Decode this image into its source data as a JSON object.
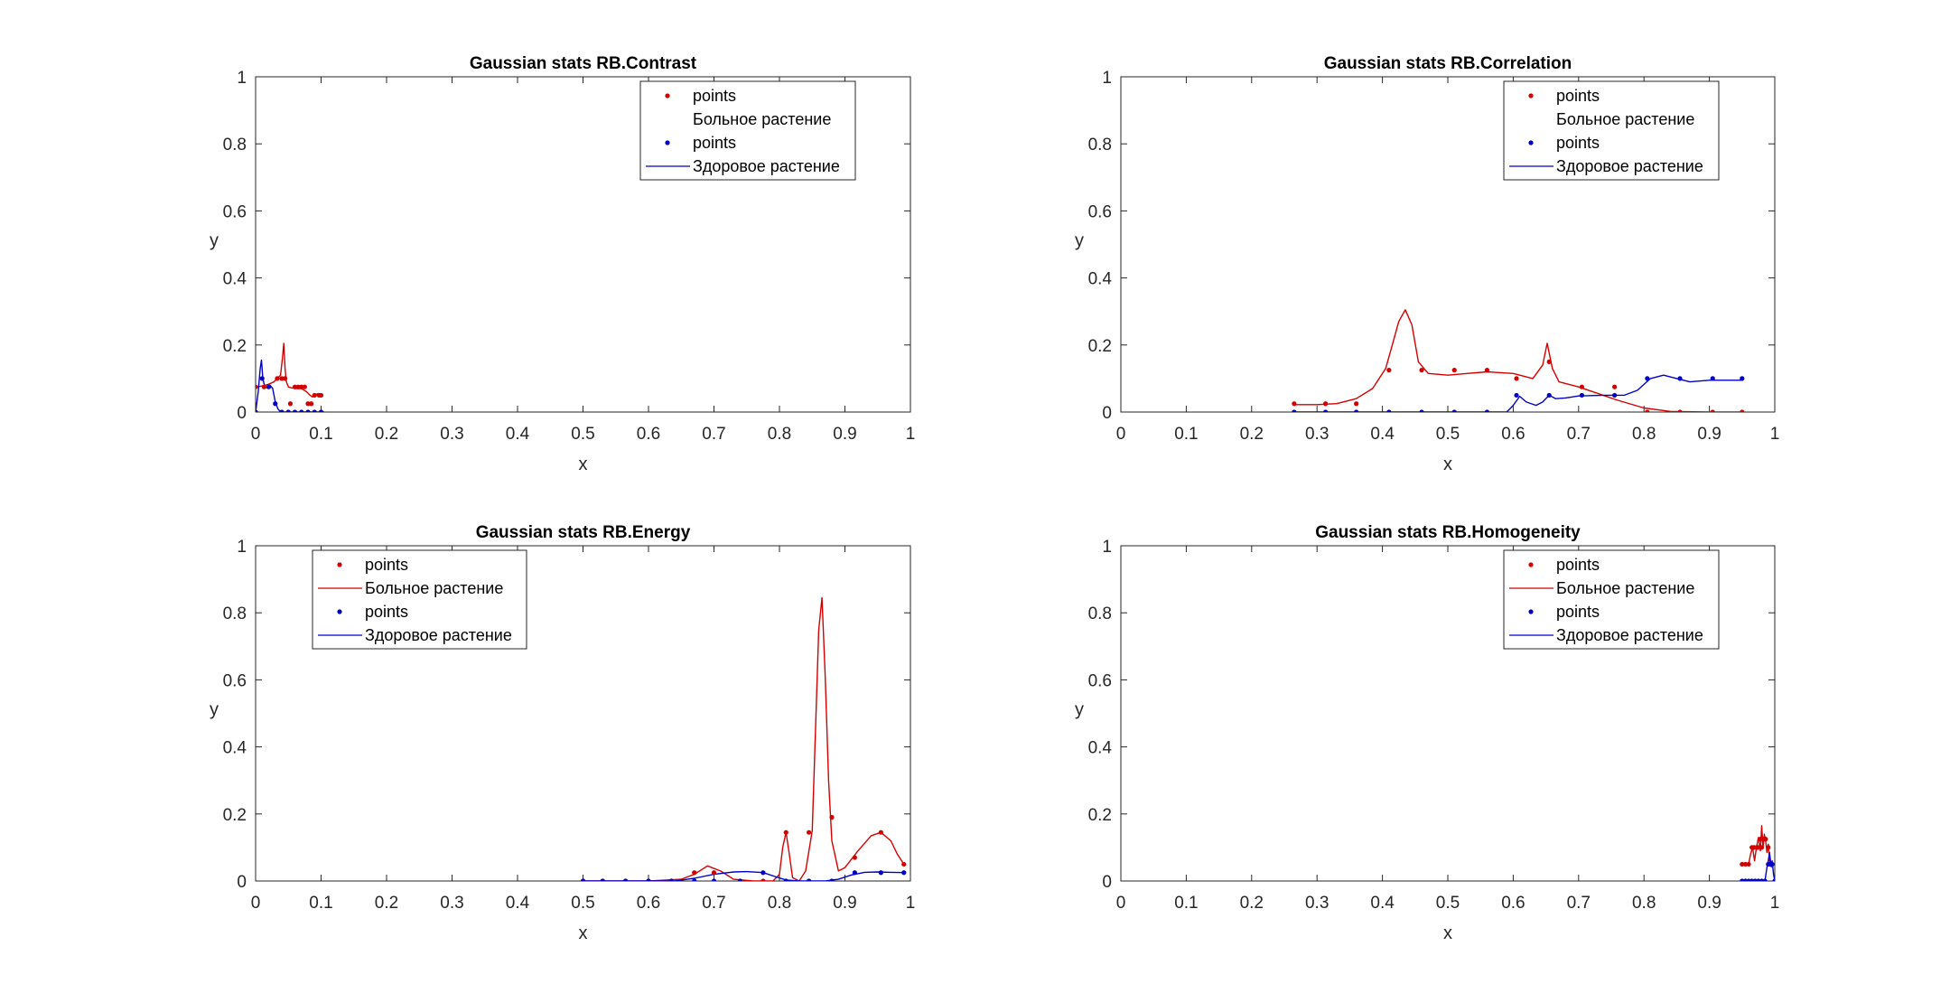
{
  "figure": {
    "background": "#ffffff",
    "axis_color": "#262626"
  },
  "chart_data": [
    {
      "type": "line",
      "title": "Gaussian stats RB.Contrast",
      "xlabel": "x",
      "ylabel": "y",
      "xlim": [
        0,
        1
      ],
      "ylim": [
        0,
        1
      ],
      "xticks": [
        "0",
        "0.1",
        "0.2",
        "0.3",
        "0.4",
        "0.5",
        "0.6",
        "0.7",
        "0.8",
        "0.9",
        "1"
      ],
      "yticks": [
        "0",
        "0.2",
        "0.4",
        "0.6",
        "0.8",
        "1"
      ],
      "legend_position": "top-right",
      "legend": [
        {
          "label": "points",
          "kind": "point",
          "color": "#d40000"
        },
        {
          "label": "Больное растение",
          "kind": "none",
          "color": "#d40000"
        },
        {
          "label": "points",
          "kind": "point",
          "color": "#0000c8"
        },
        {
          "label": "Здоровое растение",
          "kind": "line",
          "color": "#0000c8"
        }
      ],
      "series": [
        {
          "role": "sick-points",
          "kind": "points",
          "color": "#d40000",
          "x": [
            0.0,
            0.013,
            0.033,
            0.04,
            0.045,
            0.053,
            0.06,
            0.065,
            0.07,
            0.075,
            0.08,
            0.085,
            0.09,
            0.097,
            0.1
          ],
          "y": [
            0.075,
            0.075,
            0.1,
            0.1,
            0.1,
            0.025,
            0.075,
            0.075,
            0.075,
            0.075,
            0.025,
            0.025,
            0.05,
            0.05,
            0.05
          ]
        },
        {
          "role": "sick-line",
          "kind": "line",
          "color": "#d40000",
          "x": [
            0.0,
            0.005,
            0.013,
            0.02,
            0.028,
            0.033,
            0.038,
            0.041,
            0.043,
            0.045,
            0.047,
            0.05,
            0.055,
            0.06,
            0.065,
            0.07,
            0.078,
            0.083,
            0.087,
            0.09,
            0.095,
            0.1
          ],
          "y": [
            0.075,
            0.076,
            0.079,
            0.083,
            0.09,
            0.1,
            0.11,
            0.16,
            0.205,
            0.13,
            0.09,
            0.075,
            0.072,
            0.07,
            0.07,
            0.07,
            0.06,
            0.05,
            0.045,
            0.05,
            0.055,
            0.05
          ]
        },
        {
          "role": "healthy-points",
          "kind": "points",
          "color": "#0000c8",
          "x": [
            0.0,
            0.01,
            0.02,
            0.03,
            0.04,
            0.05,
            0.06,
            0.07,
            0.08,
            0.09,
            0.1
          ],
          "y": [
            0.0,
            0.1,
            0.075,
            0.025,
            0.0,
            0.0,
            0.0,
            0.0,
            0.0,
            0.0,
            0.0
          ]
        },
        {
          "role": "healthy-line",
          "kind": "line",
          "color": "#0000c8",
          "x": [
            0.0,
            0.004,
            0.007,
            0.009,
            0.011,
            0.014,
            0.018,
            0.022,
            0.026,
            0.03,
            0.034,
            0.038,
            0.045,
            0.06,
            0.08,
            0.1,
            0.105
          ],
          "y": [
            0.0,
            0.06,
            0.13,
            0.155,
            0.1,
            0.075,
            0.072,
            0.08,
            0.07,
            0.03,
            0.01,
            0.0,
            0.0,
            0.0,
            0.0,
            0.0,
            0.0
          ]
        }
      ]
    },
    {
      "type": "line",
      "title": "Gaussian stats RB.Correlation",
      "xlabel": "x",
      "ylabel": "y",
      "xlim": [
        0,
        1
      ],
      "ylim": [
        0,
        1
      ],
      "xticks": [
        "0",
        "0.1",
        "0.2",
        "0.3",
        "0.4",
        "0.5",
        "0.6",
        "0.7",
        "0.8",
        "0.9",
        "1"
      ],
      "yticks": [
        "0",
        "0.2",
        "0.4",
        "0.6",
        "0.8",
        "1"
      ],
      "legend_position": "top-right",
      "legend": [
        {
          "label": "points",
          "kind": "point",
          "color": "#d40000"
        },
        {
          "label": "Больное растение",
          "kind": "none",
          "color": "#d40000"
        },
        {
          "label": "points",
          "kind": "point",
          "color": "#0000c8"
        },
        {
          "label": "Здоровое растение",
          "kind": "line",
          "color": "#0000c8"
        }
      ],
      "series": [
        {
          "role": "sick-points",
          "kind": "points",
          "color": "#d40000",
          "x": [
            0.265,
            0.313,
            0.36,
            0.41,
            0.46,
            0.51,
            0.56,
            0.605,
            0.655,
            0.705,
            0.755,
            0.805,
            0.855,
            0.905,
            0.95
          ],
          "y": [
            0.025,
            0.025,
            0.025,
            0.125,
            0.125,
            0.125,
            0.125,
            0.1,
            0.15,
            0.075,
            0.075,
            0.0,
            0.0,
            0.0,
            0.0
          ]
        },
        {
          "role": "sick-line",
          "kind": "line",
          "color": "#d40000",
          "x": [
            0.265,
            0.3,
            0.33,
            0.36,
            0.385,
            0.405,
            0.415,
            0.425,
            0.435,
            0.445,
            0.455,
            0.47,
            0.5,
            0.53,
            0.56,
            0.6,
            0.63,
            0.645,
            0.652,
            0.66,
            0.67,
            0.7,
            0.73,
            0.76,
            0.8,
            0.84,
            0.9,
            0.95
          ],
          "y": [
            0.022,
            0.022,
            0.025,
            0.04,
            0.07,
            0.13,
            0.2,
            0.27,
            0.305,
            0.26,
            0.15,
            0.115,
            0.11,
            0.115,
            0.12,
            0.115,
            0.1,
            0.14,
            0.205,
            0.13,
            0.09,
            0.075,
            0.055,
            0.035,
            0.012,
            0.002,
            0.0,
            0.0
          ]
        },
        {
          "role": "healthy-points",
          "kind": "points",
          "color": "#0000c8",
          "x": [
            0.265,
            0.313,
            0.36,
            0.41,
            0.46,
            0.51,
            0.56,
            0.605,
            0.655,
            0.705,
            0.755,
            0.805,
            0.855,
            0.905,
            0.95
          ],
          "y": [
            0.0,
            0.0,
            0.0,
            0.0,
            0.0,
            0.0,
            0.0,
            0.05,
            0.05,
            0.05,
            0.05,
            0.1,
            0.1,
            0.1,
            0.1
          ]
        },
        {
          "role": "healthy-line",
          "kind": "line",
          "color": "#0000c8",
          "x": [
            0.265,
            0.4,
            0.5,
            0.57,
            0.59,
            0.6,
            0.61,
            0.62,
            0.635,
            0.645,
            0.655,
            0.665,
            0.68,
            0.7,
            0.74,
            0.77,
            0.79,
            0.81,
            0.83,
            0.85,
            0.87,
            0.9,
            0.95
          ],
          "y": [
            0.0,
            0.0,
            0.0,
            0.0,
            0.0,
            0.02,
            0.047,
            0.03,
            0.02,
            0.03,
            0.05,
            0.04,
            0.042,
            0.048,
            0.05,
            0.05,
            0.065,
            0.1,
            0.11,
            0.1,
            0.09,
            0.095,
            0.095
          ]
        }
      ]
    },
    {
      "type": "line",
      "title": "Gaussian stats RB.Energy",
      "xlabel": "x",
      "ylabel": "y",
      "xlim": [
        0,
        1
      ],
      "ylim": [
        0,
        1
      ],
      "xticks": [
        "0",
        "0.1",
        "0.2",
        "0.3",
        "0.4",
        "0.5",
        "0.6",
        "0.7",
        "0.8",
        "0.9",
        "1"
      ],
      "yticks": [
        "0",
        "0.2",
        "0.4",
        "0.6",
        "0.8",
        "1"
      ],
      "legend_position": "top-left",
      "legend": [
        {
          "label": "points",
          "kind": "point",
          "color": "#d40000"
        },
        {
          "label": "Больное растение",
          "kind": "line",
          "color": "#d40000"
        },
        {
          "label": "points",
          "kind": "point",
          "color": "#0000c8"
        },
        {
          "label": "Здоровое растение",
          "kind": "line",
          "color": "#0000c8"
        }
      ],
      "series": [
        {
          "role": "sick-points",
          "kind": "points",
          "color": "#d40000",
          "x": [
            0.5,
            0.53,
            0.565,
            0.6,
            0.635,
            0.67,
            0.7,
            0.74,
            0.775,
            0.81,
            0.845,
            0.88,
            0.915,
            0.955,
            0.99
          ],
          "y": [
            0.0,
            0.0,
            0.0,
            0.0,
            0.0,
            0.025,
            0.025,
            0.0,
            0.0,
            0.145,
            0.145,
            0.19,
            0.07,
            0.145,
            0.05
          ]
        },
        {
          "role": "sick-line",
          "kind": "line",
          "color": "#d40000",
          "x": [
            0.5,
            0.6,
            0.65,
            0.67,
            0.69,
            0.71,
            0.73,
            0.76,
            0.79,
            0.8,
            0.805,
            0.81,
            0.815,
            0.82,
            0.83,
            0.84,
            0.85,
            0.855,
            0.86,
            0.865,
            0.87,
            0.875,
            0.88,
            0.89,
            0.9,
            0.92,
            0.94,
            0.955,
            0.97,
            0.98,
            0.99
          ],
          "y": [
            0.0,
            0.0,
            0.005,
            0.02,
            0.045,
            0.03,
            0.005,
            0.0,
            0.0,
            0.02,
            0.1,
            0.145,
            0.08,
            0.01,
            0.0,
            0.03,
            0.15,
            0.45,
            0.75,
            0.845,
            0.6,
            0.3,
            0.12,
            0.03,
            0.04,
            0.09,
            0.135,
            0.145,
            0.12,
            0.08,
            0.05
          ]
        },
        {
          "role": "healthy-points",
          "kind": "points",
          "color": "#0000c8",
          "x": [
            0.5,
            0.53,
            0.565,
            0.6,
            0.635,
            0.67,
            0.7,
            0.74,
            0.775,
            0.81,
            0.845,
            0.88,
            0.915,
            0.955,
            0.99
          ],
          "y": [
            0.0,
            0.0,
            0.0,
            0.0,
            0.0,
            0.0,
            0.0,
            0.0,
            0.025,
            0.0,
            0.0,
            0.0,
            0.025,
            0.025,
            0.025
          ]
        },
        {
          "role": "healthy-line",
          "kind": "line",
          "color": "#0000c8",
          "x": [
            0.5,
            0.6,
            0.64,
            0.67,
            0.7,
            0.73,
            0.75,
            0.775,
            0.795,
            0.81,
            0.83,
            0.85,
            0.87,
            0.89,
            0.91,
            0.93,
            0.95,
            0.97,
            0.99
          ],
          "y": [
            0.0,
            0.0,
            0.0,
            0.008,
            0.02,
            0.027,
            0.028,
            0.025,
            0.012,
            0.003,
            0.0,
            0.0,
            0.0,
            0.005,
            0.018,
            0.026,
            0.027,
            0.026,
            0.025
          ]
        }
      ]
    },
    {
      "type": "line",
      "title": "Gaussian stats RB.Homogeneity",
      "xlabel": "x",
      "ylabel": "y",
      "xlim": [
        0,
        1
      ],
      "ylim": [
        0,
        1
      ],
      "xticks": [
        "0",
        "0.1",
        "0.2",
        "0.3",
        "0.4",
        "0.5",
        "0.6",
        "0.7",
        "0.8",
        "0.9",
        "1"
      ],
      "yticks": [
        "0",
        "0.2",
        "0.4",
        "0.6",
        "0.8",
        "1"
      ],
      "legend_position": "top-right",
      "legend": [
        {
          "label": "points",
          "kind": "point",
          "color": "#d40000"
        },
        {
          "label": "Больное растение",
          "kind": "line",
          "color": "#d40000"
        },
        {
          "label": "points",
          "kind": "point",
          "color": "#0000c8"
        },
        {
          "label": "Здоровое растение",
          "kind": "line",
          "color": "#0000c8"
        }
      ],
      "series": [
        {
          "role": "sick-points",
          "kind": "points",
          "color": "#d40000",
          "x": [
            0.95,
            0.955,
            0.96,
            0.965,
            0.968,
            0.972,
            0.975,
            0.978,
            0.98,
            0.983,
            0.986,
            0.99,
            0.993
          ],
          "y": [
            0.05,
            0.05,
            0.05,
            0.1,
            0.1,
            0.1,
            0.1,
            0.125,
            0.1,
            0.125,
            0.125,
            0.1,
            0.05
          ]
        },
        {
          "role": "sick-line",
          "kind": "line",
          "color": "#d40000",
          "x": [
            0.95,
            0.955,
            0.96,
            0.963,
            0.966,
            0.969,
            0.972,
            0.975,
            0.978,
            0.98,
            0.982,
            0.984,
            0.986,
            0.988,
            0.99,
            0.992,
            0.995
          ],
          "y": [
            0.05,
            0.05,
            0.05,
            0.08,
            0.1,
            0.06,
            0.1,
            0.13,
            0.09,
            0.165,
            0.1,
            0.14,
            0.12,
            0.085,
            0.11,
            0.06,
            0.04
          ]
        },
        {
          "role": "healthy-points",
          "kind": "points",
          "color": "#0000c8",
          "x": [
            0.95,
            0.955,
            0.96,
            0.965,
            0.97,
            0.975,
            0.98,
            0.985,
            0.99,
            0.993,
            0.996,
            1.0
          ],
          "y": [
            0.0,
            0.0,
            0.0,
            0.0,
            0.0,
            0.0,
            0.0,
            0.0,
            0.05,
            0.05,
            0.05,
            0.0
          ]
        },
        {
          "role": "healthy-line",
          "kind": "line",
          "color": "#0000c8",
          "x": [
            0.95,
            0.97,
            0.985,
            0.988,
            0.99,
            0.992,
            0.994,
            0.996,
            0.998,
            1.0
          ],
          "y": [
            0.0,
            0.0,
            0.0,
            0.04,
            0.06,
            0.085,
            0.05,
            0.06,
            0.02,
            0.0
          ]
        }
      ]
    }
  ]
}
